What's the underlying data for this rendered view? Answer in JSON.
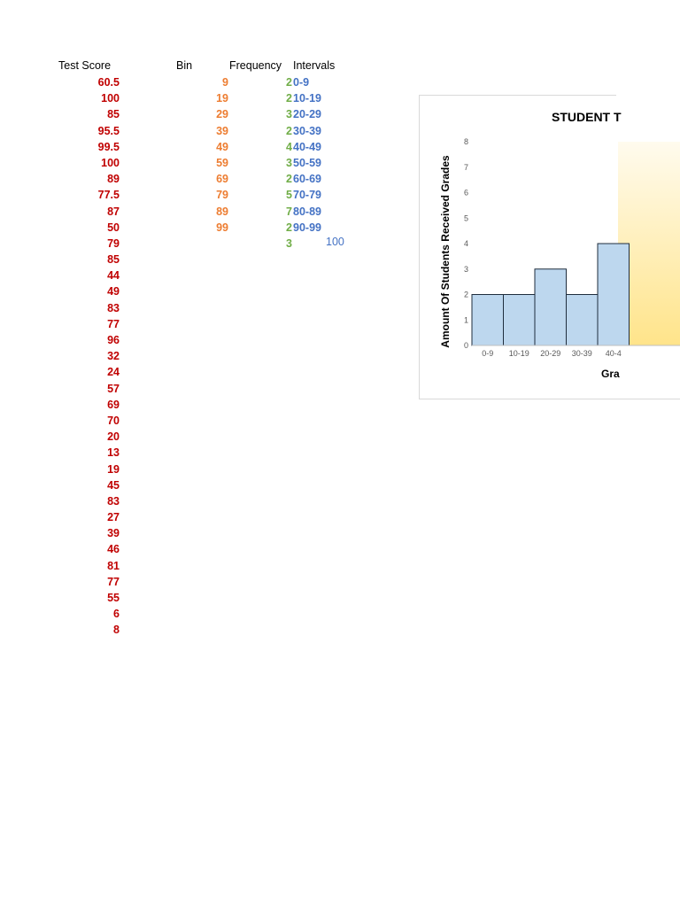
{
  "table": {
    "headers": {
      "test_score": "Test Score",
      "bin": "Bin",
      "frequency": "Frequency",
      "intervals": "Intervals"
    },
    "test_scores": [
      "60.5",
      "100",
      "85",
      "95.5",
      "99.5",
      "100",
      "89",
      "77.5",
      "87",
      "50",
      "79",
      "85",
      "44",
      "49",
      "83",
      "77",
      "96",
      "32",
      "24",
      "57",
      "69",
      "70",
      "20",
      "13",
      "19",
      "45",
      "83",
      "27",
      "39",
      "46",
      "81",
      "77",
      "55",
      "6",
      "8"
    ],
    "bins": [
      "9",
      "19",
      "29",
      "39",
      "49",
      "59",
      "69",
      "79",
      "89",
      "99"
    ],
    "frequencies": [
      "2",
      "2",
      "3",
      "2",
      "4",
      "3",
      "2",
      "5",
      "7",
      "2",
      "3"
    ],
    "intervals": [
      "0-9",
      "10-19",
      "20-29",
      "30-39",
      "40-49",
      "50-59",
      "60-69",
      "70-79",
      "80-89",
      "90-99"
    ],
    "extra_interval": "100"
  },
  "colors": {
    "scores": "#c00000",
    "bins": "#ed7d31",
    "frequency": "#70ad47",
    "intervals": "#4472c4",
    "bar_fill": "#bdd7ee",
    "bar_stroke": "#1f2d3d"
  },
  "chart_data": {
    "type": "bar",
    "title": "STUDENT T",
    "xlabel": "Gra",
    "ylabel": "Amount Of Students Received Grades",
    "categories": [
      "0-9",
      "10-19",
      "20-29",
      "30-39",
      "40-4"
    ],
    "values": [
      2,
      2,
      3,
      2,
      4
    ],
    "ylim": [
      0,
      8
    ],
    "yticks": [
      "0",
      "1",
      "2",
      "3",
      "4",
      "5",
      "6",
      "7",
      "8"
    ],
    "grid": false,
    "legend": "none"
  }
}
